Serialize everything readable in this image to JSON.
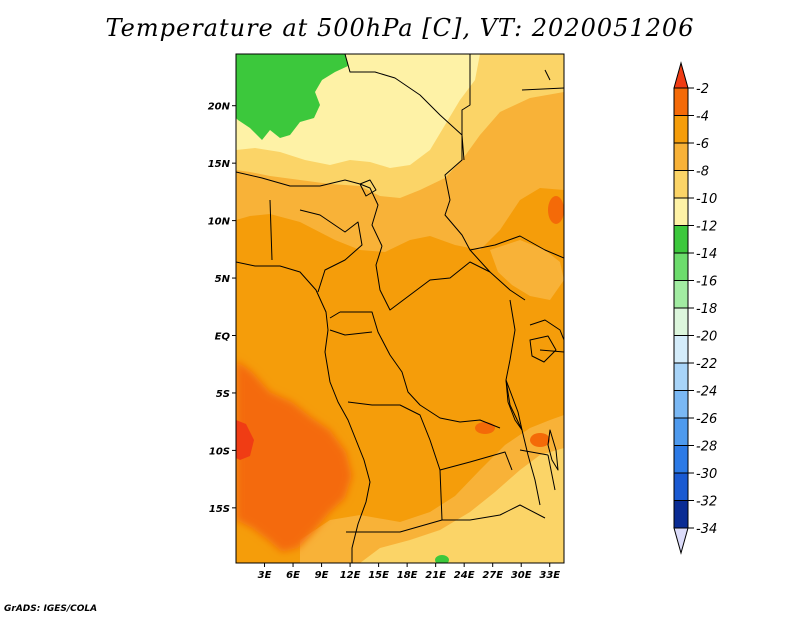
{
  "title": "Temperature at 500hPa [C], VT: 2020051206",
  "credit": "GrADS: IGES/COLA",
  "map": {
    "lat_labels": [
      {
        "value": 20,
        "label": "20N"
      },
      {
        "value": 15,
        "label": "15N"
      },
      {
        "value": 10,
        "label": "10N"
      },
      {
        "value": 5,
        "label": "5N"
      },
      {
        "value": 0,
        "label": "EQ"
      },
      {
        "value": -5,
        "label": "5S"
      },
      {
        "value": -10,
        "label": "10S"
      },
      {
        "value": -15,
        "label": "15S"
      }
    ],
    "lon_labels": [
      {
        "value": 3,
        "label": "3E"
      },
      {
        "value": 6,
        "label": "6E"
      },
      {
        "value": 9,
        "label": "9E"
      },
      {
        "value": 12,
        "label": "12E"
      },
      {
        "value": 15,
        "label": "15E"
      },
      {
        "value": 18,
        "label": "18E"
      },
      {
        "value": 21,
        "label": "21E"
      },
      {
        "value": 24,
        "label": "24E"
      },
      {
        "value": 27,
        "label": "27E"
      },
      {
        "value": 30,
        "label": "30E"
      },
      {
        "value": 33,
        "label": "33E"
      }
    ],
    "lon_range": [
      0,
      34.5
    ],
    "lat_range": [
      -19.8,
      24.5
    ]
  },
  "colorbar": {
    "levels": [
      {
        "label": "-2",
        "color": "#f03c14"
      },
      {
        "label": "-4",
        "color": "#f46a08"
      },
      {
        "label": "-6",
        "color": "#f59d0a"
      },
      {
        "label": "-8",
        "color": "#f8b238"
      },
      {
        "label": "-10",
        "color": "#fbd467"
      },
      {
        "label": "-12",
        "color": "#fef2a6"
      },
      {
        "label": "-14",
        "color": "#3cc83c"
      },
      {
        "label": "-16",
        "color": "#6cdc6c"
      },
      {
        "label": "-18",
        "color": "#a2eca2"
      },
      {
        "label": "-20",
        "color": "#dcf6dc"
      },
      {
        "label": "-22",
        "color": "#d4ecfa"
      },
      {
        "label": "-24",
        "color": "#a8d4f8"
      },
      {
        "label": "-26",
        "color": "#7ab8f4"
      },
      {
        "label": "-28",
        "color": "#4e9aee"
      },
      {
        "label": "-30",
        "color": "#2c7ae6"
      },
      {
        "label": "-32",
        "color": "#1a5ad2"
      },
      {
        "label": "-34",
        "color": "#0a2c94"
      }
    ],
    "top_arrow_color": "#f03c14",
    "bottom_arrow_color": "#dcdcfa"
  }
}
